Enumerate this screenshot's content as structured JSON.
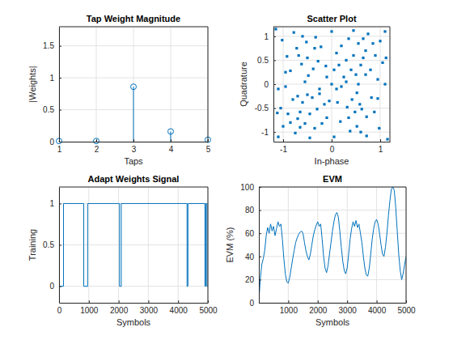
{
  "chart_data": [
    {
      "type": "stem",
      "title": "Tap Weight Magnitude",
      "xlabel": "Taps",
      "ylabel": "|Weights|",
      "x": [
        1,
        2,
        3,
        4,
        5
      ],
      "values": [
        0.01,
        0.01,
        0.86,
        0.16,
        0.03
      ],
      "xlim": [
        1,
        5
      ],
      "ylim": [
        0,
        1.8
      ],
      "xticks": [
        1,
        2,
        3,
        4,
        5
      ],
      "yticks": [
        0,
        0.5,
        1,
        1.5
      ],
      "grid": true,
      "color": "#0072bd",
      "marker": "circle"
    },
    {
      "type": "scatter",
      "title": "Scatter Plot",
      "xlabel": "In-phase",
      "ylabel": "Quadrature",
      "x": [
        0.45,
        0.6,
        0.7,
        0.3,
        0.55,
        0.8,
        0.4,
        0.65,
        0.2,
        0.9,
        0.5,
        0.35,
        1.0,
        0.75,
        0.15,
        -0.5,
        -0.62,
        -0.72,
        -0.28,
        -0.52,
        -0.85,
        -0.38,
        -0.68,
        -0.22,
        -0.92,
        -0.48,
        -0.33,
        -1.02,
        -0.78,
        -0.12,
        -0.45,
        -0.6,
        -0.7,
        -0.3,
        -0.55,
        -0.8,
        -0.4,
        -0.65,
        -0.2,
        -0.9,
        -0.5,
        -0.35,
        -1.0,
        -0.75,
        -0.15,
        0.48,
        0.58,
        0.72,
        0.32,
        0.52,
        0.82,
        0.42,
        0.62,
        0.18,
        0.88,
        0.52,
        0.38,
        0.98,
        0.72,
        0.12,
        0,
        0.1,
        -0.1,
        1.1,
        -1.1,
        0,
        0.05,
        1.15,
        -1.15,
        1.1,
        -1.1,
        0.95,
        -0.95,
        0.2,
        -0.25,
        0.3,
        0.05,
        -0.05,
        1.05,
        -1.05,
        0.6,
        -0.6,
        0.25,
        -0.25,
        0.85,
        -0.85,
        0.65,
        -0.65,
        0.1,
        -0.1,
        0.95,
        -0.95,
        0.45,
        -0.45,
        0.7,
        -0.7,
        0.35,
        -0.35,
        1.12,
        -1.12,
        0.55,
        -0.55
      ],
      "values": [
        0.6,
        0.4,
        0.7,
        0.5,
        0.85,
        0.3,
        0.3,
        0.55,
        0.8,
        0.6,
        0.2,
        0.95,
        0.9,
        1.05,
        0.4,
        0.55,
        0.42,
        0.75,
        0.48,
        0.88,
        0.28,
        0.32,
        0.6,
        0.78,
        0.58,
        0.18,
        0.98,
        0.92,
        1.08,
        0.38,
        -0.62,
        -0.38,
        -0.72,
        -0.52,
        -0.82,
        -0.32,
        -0.28,
        -0.58,
        -0.82,
        -0.62,
        -0.22,
        -0.92,
        -0.88,
        -1.02,
        -0.42,
        -0.58,
        -0.42,
        -0.68,
        -0.48,
        -0.88,
        -0.28,
        -0.32,
        -0.52,
        -0.78,
        -0.58,
        -0.18,
        -0.98,
        -0.92,
        -1.08,
        -0.38,
        0,
        -0.1,
        0.15,
        0,
        -0.1,
        1.1,
        -1.1,
        -1.15,
        1.15,
        1.1,
        -1.1,
        -0.3,
        0.25,
        -0.05,
        -0.2,
        0.05,
        0.3,
        -0.35,
        0.45,
        -0.5,
        -1.0,
        1.0,
        0.15,
        -0.1,
        0.85,
        -0.8,
        0.95,
        -0.9,
        0.65,
        -0.7,
        0.1,
        -0.05,
        1.12,
        -1.12,
        0.2,
        -0.25,
        -0.7,
        0.75,
        0.55,
        -0.6,
        0.0,
        0.05
      ],
      "xlim": [
        -1.2,
        1.2
      ],
      "ylim": [
        -1.2,
        1.2
      ],
      "xticks": [
        -1,
        0,
        1
      ],
      "yticks": [
        -1,
        -0.5,
        0,
        0.5,
        1
      ],
      "grid": true,
      "color": "#0072bd",
      "marker": "square"
    },
    {
      "type": "line",
      "title": "Adapt Weights Signal",
      "xlabel": "Symbols",
      "ylabel": "Training",
      "x": [
        0,
        150,
        830,
        960,
        2030,
        2090,
        4300,
        4330,
        4900,
        4930,
        4970,
        5000
      ],
      "values": [
        0,
        1,
        0,
        1,
        0,
        1,
        0,
        1,
        0,
        1,
        0,
        0
      ],
      "xlim": [
        0,
        5000
      ],
      "ylim": [
        -0.2,
        1.2
      ],
      "xticks": [
        0,
        1000,
        2000,
        3000,
        4000,
        5000
      ],
      "yticks": [
        0,
        0.5,
        1
      ],
      "grid": true,
      "color": "#0072bd",
      "line_style": "step"
    },
    {
      "type": "line",
      "title": "EVM",
      "xlabel": "Symbols",
      "ylabel": "EVM (%)",
      "x": [
        1,
        50,
        100,
        150,
        200,
        250,
        300,
        350,
        400,
        450,
        500,
        550,
        600,
        650,
        700,
        750,
        800,
        850,
        900,
        950,
        1000,
        1050,
        1100,
        1150,
        1200,
        1250,
        1300,
        1350,
        1400,
        1450,
        1500,
        1550,
        1600,
        1650,
        1700,
        1750,
        1800,
        1850,
        1900,
        1950,
        2000,
        2050,
        2100,
        2150,
        2200,
        2250,
        2300,
        2350,
        2400,
        2450,
        2500,
        2550,
        2600,
        2650,
        2700,
        2750,
        2800,
        2850,
        2900,
        2950,
        3000,
        3050,
        3100,
        3150,
        3200,
        3250,
        3300,
        3350,
        3400,
        3450,
        3500,
        3550,
        3600,
        3650,
        3700,
        3750,
        3800,
        3850,
        3900,
        3950,
        4000,
        4050,
        4100,
        4150,
        4200,
        4250,
        4300,
        4350,
        4400,
        4450,
        4500,
        4550,
        4600,
        4650,
        4700,
        4750,
        4800,
        4850,
        4900,
        4950,
        5000
      ],
      "values": [
        2,
        20,
        33,
        38,
        45,
        58,
        65,
        60,
        68,
        62,
        66,
        58,
        64,
        70,
        66,
        68,
        55,
        38,
        25,
        18,
        17,
        22,
        30,
        38,
        45,
        52,
        56,
        59,
        61,
        62,
        60,
        52,
        45,
        40,
        37,
        42,
        50,
        58,
        63,
        67,
        70,
        66,
        68,
        55,
        40,
        30,
        26,
        32,
        42,
        52,
        62,
        70,
        76,
        78,
        74,
        62,
        48,
        36,
        28,
        25,
        30,
        42,
        55,
        64,
        70,
        66,
        71,
        65,
        68,
        60,
        52,
        40,
        30,
        24,
        23,
        30,
        42,
        55,
        64,
        70,
        72,
        68,
        60,
        50,
        42,
        40,
        48,
        60,
        75,
        88,
        98,
        100,
        97,
        82,
        62,
        42,
        28,
        20,
        25,
        33,
        40
      ],
      "xlim": [
        1,
        5000
      ],
      "ylim": [
        0,
        100
      ],
      "xticks": [
        1000,
        2000,
        3000,
        4000,
        5000
      ],
      "yticks": [
        0,
        20,
        40,
        60,
        80,
        100
      ],
      "grid": true,
      "color": "#0072bd"
    }
  ]
}
